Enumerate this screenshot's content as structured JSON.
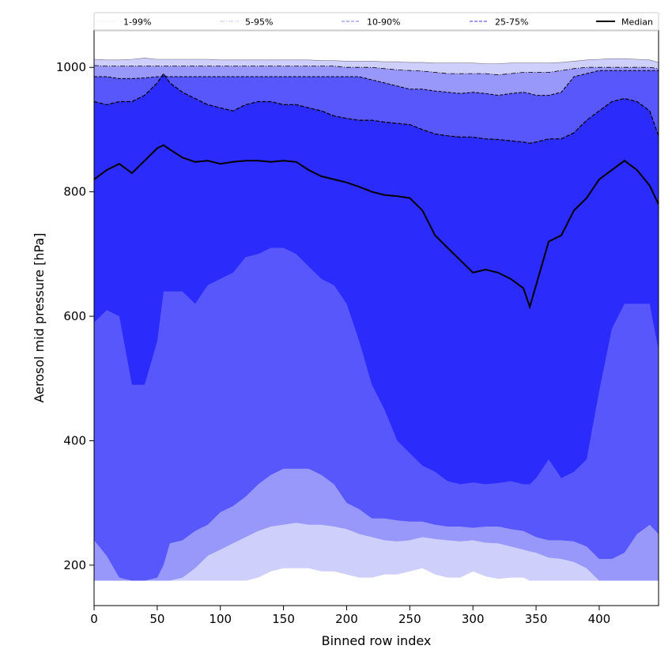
{
  "chart_data": {
    "type": "area",
    "title": "",
    "xlabel": "Binned row index",
    "ylabel": "Aerosol mid pressure [hPa]",
    "xlim": [
      0,
      447
    ],
    "ylim": [
      135,
      1060
    ],
    "xticks": [
      0,
      50,
      100,
      150,
      200,
      250,
      300,
      350,
      400
    ],
    "yticks": [
      200,
      400,
      600,
      800,
      1000
    ],
    "grid": false,
    "legend_position": "top",
    "legend_entries": [
      {
        "label": "1-99%",
        "color": "#e2e2fb",
        "style": "solid-thin"
      },
      {
        "label": "5-95%",
        "color": "#b3b3f0",
        "style": "dashdot"
      },
      {
        "label": "10-90%",
        "color": "#9494f8",
        "style": "dashed"
      },
      {
        "label": "25-75%",
        "color": "#6060f0",
        "style": "dashed"
      },
      {
        "label": "Median",
        "color": "#000000",
        "style": "solid-thick"
      }
    ],
    "band_colors": {
      "p1_99": "#cfcffb",
      "p5_95": "#9898fb",
      "p10_90": "#5757fb",
      "p25_75": "#2b2bfb",
      "median_line": "#000000"
    },
    "x": [
      0,
      10,
      20,
      30,
      40,
      50,
      55,
      60,
      70,
      80,
      90,
      100,
      110,
      120,
      130,
      140,
      150,
      160,
      170,
      180,
      190,
      200,
      210,
      220,
      230,
      240,
      250,
      260,
      270,
      280,
      290,
      300,
      310,
      320,
      330,
      340,
      345,
      350,
      360,
      370,
      380,
      390,
      400,
      410,
      420,
      430,
      440,
      447
    ],
    "series": [
      {
        "name": "Median",
        "values": [
          820,
          835,
          845,
          830,
          850,
          870,
          875,
          868,
          855,
          848,
          850,
          845,
          848,
          850,
          850,
          848,
          850,
          848,
          835,
          825,
          820,
          815,
          808,
          800,
          795,
          793,
          790,
          770,
          730,
          710,
          690,
          670,
          675,
          670,
          660,
          645,
          615,
          650,
          720,
          730,
          770,
          790,
          820,
          835,
          850,
          835,
          810,
          780
        ]
      },
      {
        "name": "P1",
        "values": [
          175,
          175,
          175,
          175,
          175,
          175,
          175,
          175,
          175,
          175,
          175,
          175,
          175,
          175,
          180,
          190,
          195,
          195,
          195,
          190,
          190,
          185,
          180,
          180,
          185,
          185,
          190,
          195,
          185,
          180,
          180,
          190,
          182,
          178,
          180,
          180,
          175,
          175,
          175,
          175,
          175,
          175,
          175,
          175,
          175,
          175,
          175,
          175
        ]
      },
      {
        "name": "P5",
        "values": [
          175,
          175,
          175,
          175,
          175,
          175,
          175,
          175,
          180,
          195,
          215,
          225,
          235,
          245,
          255,
          262,
          265,
          268,
          265,
          265,
          262,
          258,
          250,
          245,
          240,
          238,
          240,
          245,
          242,
          240,
          238,
          240,
          236,
          235,
          230,
          225,
          222,
          220,
          212,
          210,
          205,
          195,
          175,
          175,
          175,
          175,
          175,
          175
        ]
      },
      {
        "name": "P10",
        "values": [
          240,
          215,
          180,
          175,
          175,
          180,
          200,
          235,
          240,
          255,
          265,
          285,
          295,
          310,
          330,
          345,
          355,
          355,
          355,
          345,
          330,
          300,
          290,
          275,
          275,
          272,
          270,
          270,
          265,
          262,
          262,
          260,
          262,
          262,
          258,
          255,
          250,
          245,
          240,
          240,
          238,
          230,
          210,
          210,
          220,
          250,
          265,
          250
        ]
      },
      {
        "name": "P25",
        "values": [
          590,
          610,
          600,
          490,
          490,
          560,
          640,
          640,
          640,
          620,
          650,
          660,
          670,
          695,
          700,
          710,
          710,
          700,
          680,
          660,
          650,
          620,
          560,
          490,
          450,
          400,
          380,
          360,
          350,
          335,
          330,
          333,
          330,
          332,
          335,
          330,
          330,
          340,
          370,
          340,
          350,
          370,
          480,
          580,
          620,
          620,
          620,
          545
        ]
      },
      {
        "name": "P75",
        "values": [
          945,
          940,
          945,
          945,
          955,
          975,
          990,
          975,
          960,
          950,
          940,
          935,
          930,
          940,
          945,
          945,
          940,
          940,
          935,
          930,
          922,
          918,
          915,
          915,
          912,
          910,
          908,
          900,
          893,
          890,
          888,
          888,
          885,
          884,
          882,
          880,
          878,
          880,
          885,
          885,
          895,
          915,
          930,
          945,
          950,
          945,
          930,
          890
        ]
      },
      {
        "name": "P90",
        "values": [
          985,
          985,
          982,
          982,
          983,
          985,
          985,
          985,
          985,
          985,
          985,
          985,
          985,
          985,
          985,
          985,
          985,
          985,
          985,
          985,
          985,
          985,
          985,
          980,
          975,
          970,
          965,
          965,
          962,
          960,
          958,
          960,
          958,
          955,
          958,
          960,
          958,
          955,
          955,
          960,
          985,
          990,
          995,
          995,
          995,
          995,
          995,
          995
        ]
      },
      {
        "name": "P95",
        "values": [
          1003,
          1002,
          1002,
          1002,
          1002,
          1002,
          1002,
          1002,
          1002,
          1002,
          1002,
          1002,
          1002,
          1002,
          1002,
          1002,
          1002,
          1002,
          1002,
          1002,
          1002,
          1000,
          1000,
          1000,
          998,
          996,
          995,
          994,
          992,
          990,
          990,
          990,
          990,
          988,
          990,
          992,
          992,
          992,
          992,
          995,
          998,
          1000,
          1000,
          1000,
          1000,
          1000,
          1000,
          998
        ]
      },
      {
        "name": "P99",
        "values": [
          1013,
          1012,
          1012,
          1013,
          1015,
          1013,
          1013,
          1013,
          1013,
          1013,
          1013,
          1012,
          1012,
          1012,
          1012,
          1012,
          1012,
          1012,
          1012,
          1011,
          1011,
          1010,
          1010,
          1010,
          1009,
          1009,
          1008,
          1008,
          1007,
          1007,
          1007,
          1007,
          1006,
          1006,
          1007,
          1007,
          1007,
          1007,
          1007,
          1008,
          1010,
          1012,
          1013,
          1014,
          1014,
          1013,
          1012,
          1008
        ]
      }
    ]
  }
}
